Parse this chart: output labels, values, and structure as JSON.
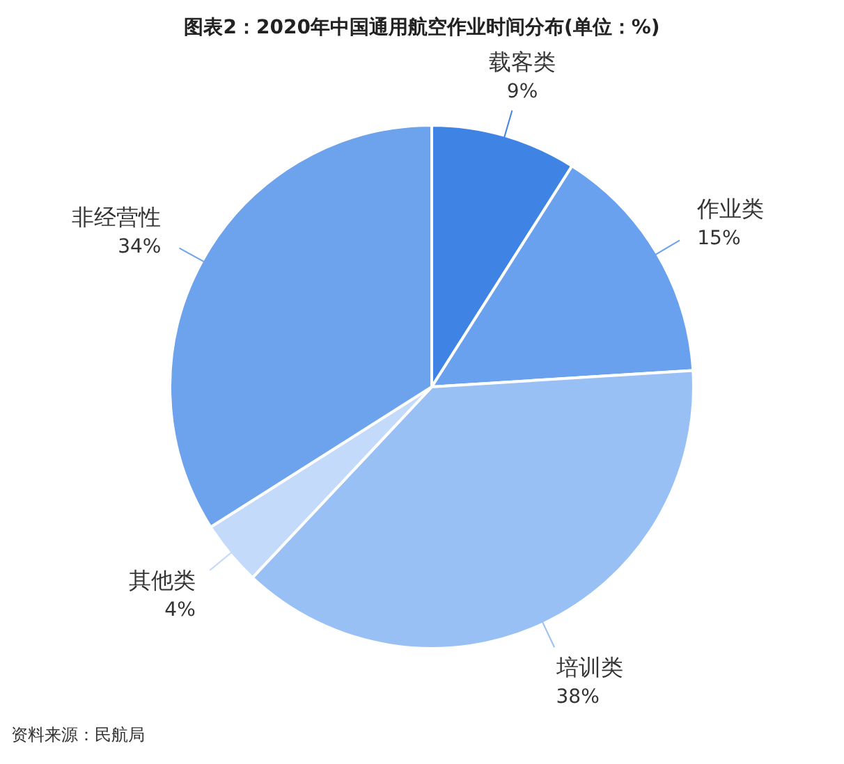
{
  "chart_data": {
    "type": "pie",
    "title": "图表2：2020年中国通用航空作业时间分布(单位：%)",
    "categories": [
      "载客类",
      "作业类",
      "培训类",
      "其他类",
      "非经营性"
    ],
    "values": [
      9,
      15,
      38,
      4,
      34
    ],
    "colors": [
      "#3f84e5",
      "#6aa1ee",
      "#98c0f4",
      "#c3dafa",
      "#6da2ec"
    ],
    "value_labels": [
      "9%",
      "15%",
      "38%",
      "4%",
      "34%"
    ],
    "annotations": [
      "资料来源：民航局"
    ]
  }
}
